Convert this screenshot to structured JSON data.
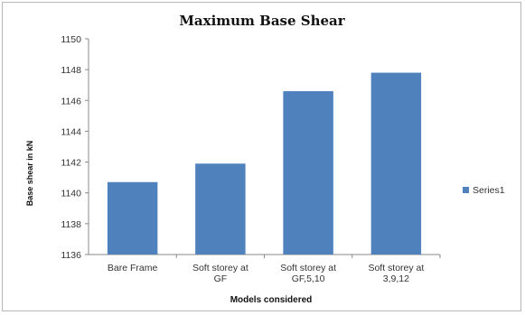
{
  "chart_data": {
    "type": "bar",
    "title": "Maximum Base Shear",
    "xlabel": "Models considered",
    "ylabel": "Base shear in kN",
    "categories": [
      [
        "Bare Frame"
      ],
      [
        "Soft storey at",
        "GF"
      ],
      [
        "Soft storey at",
        "GF,5,10"
      ],
      [
        "Soft storey at",
        "3,9,12"
      ]
    ],
    "series": [
      {
        "name": "Series1",
        "values": [
          1140.7,
          1141.9,
          1146.6,
          1147.8
        ]
      }
    ],
    "ylim": [
      1136,
      1150
    ],
    "yticks": [
      1136,
      1138,
      1140,
      1142,
      1144,
      1146,
      1148,
      1150
    ],
    "grid": false,
    "legend": "right",
    "colors": {
      "bar": "#4F81BD",
      "axis": "#888888"
    }
  }
}
